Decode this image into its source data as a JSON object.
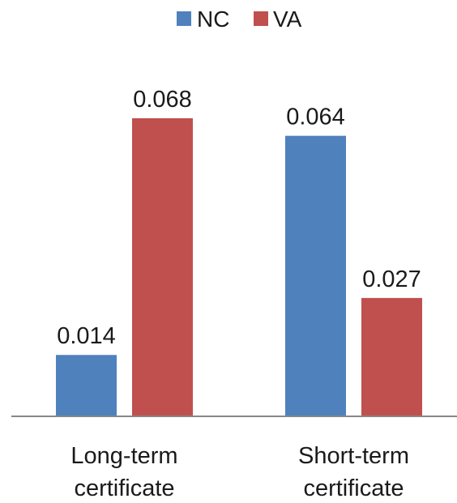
{
  "chart_data": {
    "type": "bar",
    "categories": [
      [
        "Long-term",
        "certificate"
      ],
      [
        "Short-term",
        "certificate"
      ]
    ],
    "series": [
      {
        "name": "NC",
        "color": "#4F81BD",
        "values": [
          0.014,
          0.064
        ]
      },
      {
        "name": "VA",
        "color": "#C0504D",
        "values": [
          0.068,
          0.027
        ]
      }
    ],
    "data_labels": [
      [
        "0.014",
        "0.064"
      ],
      [
        "0.068",
        "0.027"
      ]
    ],
    "ylim": [
      0,
      0.068
    ],
    "grid": false,
    "legend_position": "top"
  }
}
